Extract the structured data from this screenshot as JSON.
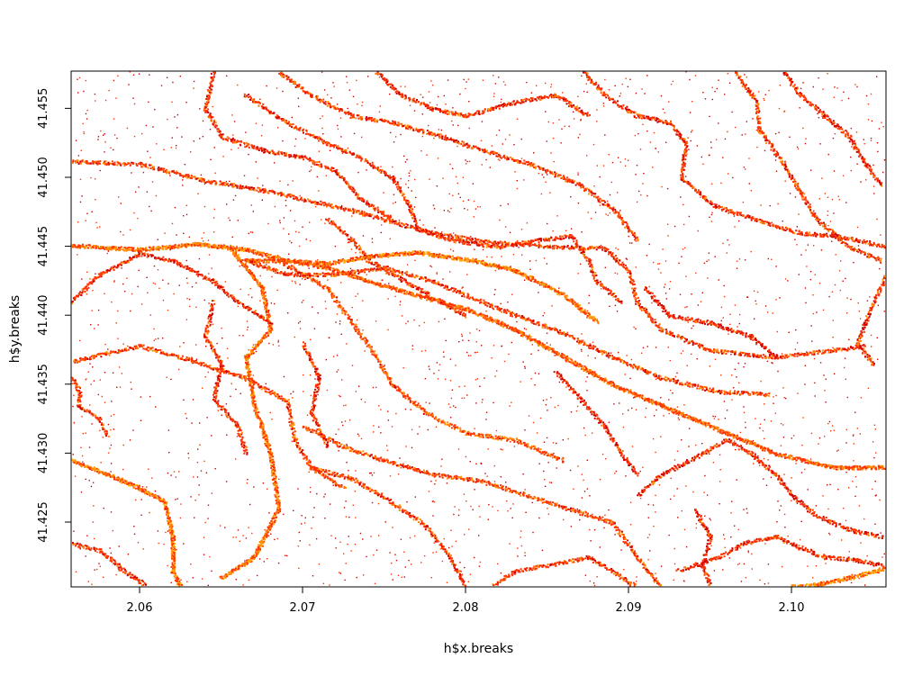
{
  "chart_data": {
    "type": "heatmap",
    "title": "",
    "xlabel": "h$x.breaks",
    "ylabel": "h$y.breaks",
    "xlim": [
      2.0558,
      2.1058
    ],
    "ylim": [
      41.4203,
      41.4577
    ],
    "x_ticks": [
      {
        "value": 2.06,
        "label": "2.06"
      },
      {
        "value": 2.07,
        "label": "2.07"
      },
      {
        "value": 2.08,
        "label": "2.08"
      },
      {
        "value": 2.09,
        "label": "2.09"
      },
      {
        "value": 2.1,
        "label": "2.10"
      }
    ],
    "y_ticks": [
      {
        "value": 41.425,
        "label": "41.425"
      },
      {
        "value": 41.43,
        "label": "41.430"
      },
      {
        "value": 41.435,
        "label": "41.435"
      },
      {
        "value": 41.44,
        "label": "41.440"
      },
      {
        "value": 41.445,
        "label": "41.445"
      },
      {
        "value": 41.45,
        "label": "41.450"
      },
      {
        "value": 41.455,
        "label": "41.455"
      }
    ],
    "colors": {
      "low": "#cc0000",
      "mid": "#ff3300",
      "high": "#ff8800",
      "peak": "#ffaa00"
    },
    "grid": false,
    "legend": "none",
    "tracks": [
      {
        "intensity": 0.9,
        "points": [
          [
            2.0558,
            41.4451
          ],
          [
            2.06,
            41.4448
          ],
          [
            2.0635,
            41.4452
          ],
          [
            2.0665,
            41.4448
          ],
          [
            2.069,
            41.444
          ],
          [
            2.0715,
            41.4438
          ],
          [
            2.074,
            41.4443
          ],
          [
            2.077,
            41.4446
          ],
          [
            2.0805,
            41.444
          ],
          [
            2.083,
            41.4433
          ],
          [
            2.086,
            41.4415
          ],
          [
            2.088,
            41.4396
          ]
        ]
      },
      {
        "intensity": 0.6,
        "points": [
          [
            2.0558,
            41.4367
          ],
          [
            2.06,
            41.4378
          ],
          [
            2.063,
            41.4368
          ],
          [
            2.0665,
            41.4355
          ],
          [
            2.069,
            41.4338
          ],
          [
            2.0695,
            41.431
          ],
          [
            2.0705,
            41.429
          ],
          [
            2.0725,
            41.4275
          ]
        ]
      },
      {
        "intensity": 0.95,
        "points": [
          [
            2.0558,
            41.4295
          ],
          [
            2.058,
            41.4285
          ],
          [
            2.06,
            41.4275
          ],
          [
            2.0615,
            41.4265
          ],
          [
            2.062,
            41.424
          ],
          [
            2.062,
            41.4215
          ],
          [
            2.0625,
            41.4203
          ]
        ]
      },
      {
        "intensity": 0.55,
        "points": [
          [
            2.0558,
            41.4355
          ],
          [
            2.0563,
            41.4345
          ],
          [
            2.0562,
            41.4335
          ],
          [
            2.0575,
            41.4325
          ],
          [
            2.058,
            41.4313
          ]
        ]
      },
      {
        "intensity": 0.85,
        "points": [
          [
            2.0655,
            41.445
          ],
          [
            2.0675,
            41.442
          ],
          [
            2.068,
            41.439
          ],
          [
            2.0665,
            41.437
          ],
          [
            2.067,
            41.4335
          ],
          [
            2.068,
            41.43
          ],
          [
            2.0685,
            41.426
          ],
          [
            2.067,
            41.4225
          ],
          [
            2.065,
            41.421
          ]
        ]
      },
      {
        "intensity": 0.7,
        "points": [
          [
            2.0685,
            41.444
          ],
          [
            2.0715,
            41.442
          ],
          [
            2.073,
            41.4395
          ],
          [
            2.0745,
            41.437
          ],
          [
            2.0755,
            41.435
          ],
          [
            2.0775,
            41.433
          ],
          [
            2.08,
            41.4315
          ],
          [
            2.083,
            41.431
          ],
          [
            2.086,
            41.4295
          ]
        ]
      },
      {
        "intensity": 0.65,
        "points": [
          [
            2.07,
            41.432
          ],
          [
            2.0725,
            41.4305
          ],
          [
            2.075,
            41.4295
          ],
          [
            2.078,
            41.4285
          ],
          [
            2.081,
            41.428
          ],
          [
            2.085,
            41.4265
          ],
          [
            2.089,
            41.425
          ],
          [
            2.0905,
            41.4225
          ],
          [
            2.092,
            41.4203
          ]
        ]
      },
      {
        "intensity": 0.6,
        "points": [
          [
            2.0705,
            41.429
          ],
          [
            2.073,
            41.4282
          ],
          [
            2.075,
            41.4268
          ],
          [
            2.0775,
            41.4248
          ],
          [
            2.079,
            41.4225
          ],
          [
            2.08,
            41.4203
          ]
        ]
      },
      {
        "intensity": 0.55,
        "points": [
          [
            2.0558,
            41.4512
          ],
          [
            2.06,
            41.451
          ],
          [
            2.064,
            41.4498
          ],
          [
            2.068,
            41.449
          ],
          [
            2.071,
            41.4482
          ],
          [
            2.0735,
            41.4475
          ],
          [
            2.0755,
            41.4468
          ],
          [
            2.078,
            41.446
          ],
          [
            2.081,
            41.4454
          ],
          [
            2.0855,
            41.445
          ],
          [
            2.0885,
            41.4449
          ],
          [
            2.09,
            41.4432
          ],
          [
            2.0905,
            41.441
          ],
          [
            2.092,
            41.439
          ],
          [
            2.095,
            41.4375
          ],
          [
            2.099,
            41.437
          ],
          [
            2.1025,
            41.4375
          ],
          [
            2.1045,
            41.4378
          ]
        ]
      },
      {
        "intensity": 0.75,
        "points": [
          [
            2.0665,
            41.444
          ],
          [
            2.069,
            41.444
          ],
          [
            2.0715,
            41.4435
          ],
          [
            2.074,
            41.4425
          ],
          [
            2.077,
            41.4415
          ],
          [
            2.08,
            41.4405
          ],
          [
            2.083,
            41.439
          ],
          [
            2.086,
            41.437
          ],
          [
            2.089,
            41.435
          ],
          [
            2.092,
            41.4335
          ],
          [
            2.096,
            41.4315
          ],
          [
            2.099,
            41.43
          ],
          [
            2.1025,
            41.429
          ],
          [
            2.1058,
            41.429
          ]
        ]
      },
      {
        "intensity": 0.6,
        "points": [
          [
            2.0665,
            41.444
          ],
          [
            2.069,
            41.443
          ],
          [
            2.072,
            41.443
          ],
          [
            2.075,
            41.4435
          ],
          [
            2.078,
            41.4425
          ],
          [
            2.082,
            41.4405
          ],
          [
            2.0855,
            41.439
          ],
          [
            2.089,
            41.437
          ],
          [
            2.092,
            41.4355
          ],
          [
            2.0955,
            41.4345
          ],
          [
            2.0985,
            41.4343
          ]
        ]
      },
      {
        "intensity": 0.55,
        "points": [
          [
            2.0715,
            41.447
          ],
          [
            2.073,
            41.4455
          ],
          [
            2.074,
            41.444
          ],
          [
            2.0755,
            41.443
          ],
          [
            2.077,
            41.442
          ],
          [
            2.0785,
            41.441
          ],
          [
            2.08,
            41.44
          ]
        ]
      },
      {
        "intensity": 0.5,
        "points": [
          [
            2.0665,
            41.456
          ],
          [
            2.069,
            41.454
          ],
          [
            2.0715,
            41.4525
          ],
          [
            2.0735,
            41.4515
          ],
          [
            2.0755,
            41.45
          ],
          [
            2.0765,
            41.448
          ],
          [
            2.077,
            41.4463
          ],
          [
            2.079,
            41.4455
          ],
          [
            2.082,
            41.445
          ],
          [
            2.0845,
            41.4455
          ],
          [
            2.0865,
            41.4458
          ],
          [
            2.0875,
            41.444
          ],
          [
            2.088,
            41.4425
          ],
          [
            2.0895,
            41.441
          ]
        ]
      },
      {
        "intensity": 0.5,
        "points": [
          [
            2.0872,
            41.4577
          ],
          [
            2.0885,
            41.456
          ],
          [
            2.0905,
            41.4545
          ],
          [
            2.0925,
            41.454
          ],
          [
            2.0935,
            41.4525
          ],
          [
            2.0932,
            41.45
          ],
          [
            2.0952,
            41.448
          ],
          [
            2.099,
            41.4465
          ],
          [
            2.1005,
            41.446
          ],
          [
            2.1025,
            41.4458
          ],
          [
            2.104,
            41.4455
          ],
          [
            2.1058,
            41.445
          ]
        ]
      },
      {
        "intensity": 0.55,
        "points": [
          [
            2.0965,
            41.4577
          ],
          [
            2.0978,
            41.4555
          ],
          [
            2.098,
            41.4535
          ],
          [
            2.0995,
            41.451
          ],
          [
            2.1005,
            41.449
          ],
          [
            2.1015,
            41.447
          ],
          [
            2.1035,
            41.445
          ],
          [
            2.1055,
            41.444
          ]
        ]
      },
      {
        "intensity": 0.45,
        "points": [
          [
            2.0995,
            41.4577
          ],
          [
            2.1005,
            41.456
          ],
          [
            2.102,
            41.4545
          ],
          [
            2.1035,
            41.453
          ],
          [
            2.1045,
            41.451
          ],
          [
            2.1055,
            41.4495
          ]
        ]
      },
      {
        "intensity": 0.5,
        "points": [
          [
            2.1058,
            41.443
          ],
          [
            2.105,
            41.441
          ],
          [
            2.1045,
            41.4395
          ],
          [
            2.104,
            41.438
          ],
          [
            2.105,
            41.4365
          ]
        ]
      },
      {
        "intensity": 0.6,
        "points": [
          [
            2.0815,
            41.4203
          ],
          [
            2.083,
            41.4215
          ],
          [
            2.0855,
            41.422
          ],
          [
            2.0875,
            41.4225
          ],
          [
            2.089,
            41.4215
          ],
          [
            2.0905,
            41.4203
          ]
        ]
      },
      {
        "intensity": 1.0,
        "points": [
          [
            2.0995,
            41.4203
          ],
          [
            2.1015,
            41.4205
          ],
          [
            2.1035,
            41.421
          ],
          [
            2.1058,
            41.4217
          ]
        ]
      },
      {
        "intensity": 0.5,
        "points": [
          [
            2.0905,
            41.427
          ],
          [
            2.092,
            41.4285
          ],
          [
            2.0945,
            41.43
          ],
          [
            2.096,
            41.431
          ],
          [
            2.0975,
            41.43
          ],
          [
            2.099,
            41.4285
          ],
          [
            2.1,
            41.427
          ],
          [
            2.1015,
            41.4255
          ],
          [
            2.1035,
            41.4245
          ],
          [
            2.1055,
            41.424
          ]
        ]
      },
      {
        "intensity": 0.45,
        "points": [
          [
            2.093,
            41.4215
          ],
          [
            2.0955,
            41.4225
          ],
          [
            2.097,
            41.4235
          ],
          [
            2.099,
            41.424
          ],
          [
            2.1005,
            41.4232
          ],
          [
            2.102,
            41.4225
          ],
          [
            2.104,
            41.4223
          ],
          [
            2.1058,
            41.4218
          ]
        ]
      },
      {
        "intensity": 0.55,
        "points": [
          [
            2.0685,
            41.4577
          ],
          [
            2.0705,
            41.456
          ],
          [
            2.073,
            41.4545
          ],
          [
            2.0755,
            41.454
          ],
          [
            2.0785,
            41.453
          ],
          [
            2.081,
            41.452
          ],
          [
            2.084,
            41.451
          ],
          [
            2.087,
            41.4495
          ],
          [
            2.0892,
            41.4475
          ],
          [
            2.0905,
            41.4455
          ]
        ]
      },
      {
        "intensity": 0.5,
        "points": [
          [
            2.0745,
            41.4577
          ],
          [
            2.076,
            41.456
          ],
          [
            2.078,
            41.455
          ],
          [
            2.08,
            41.4545
          ],
          [
            2.083,
            41.4555
          ],
          [
            2.0855,
            41.456
          ],
          [
            2.0875,
            41.4545
          ]
        ]
      },
      {
        "intensity": 0.5,
        "points": [
          [
            2.0645,
            41.4577
          ],
          [
            2.064,
            41.455
          ],
          [
            2.065,
            41.453
          ],
          [
            2.0675,
            41.452
          ],
          [
            2.07,
            41.4515
          ],
          [
            2.072,
            41.4505
          ],
          [
            2.0735,
            41.4485
          ],
          [
            2.0755,
            41.447
          ]
        ]
      },
      {
        "intensity": 0.45,
        "points": [
          [
            2.0558,
            41.441
          ],
          [
            2.0575,
            41.443
          ],
          [
            2.06,
            41.4445
          ],
          [
            2.062,
            41.444
          ],
          [
            2.0645,
            41.4425
          ],
          [
            2.066,
            41.441
          ],
          [
            2.068,
            41.4395
          ]
        ]
      },
      {
        "intensity": 0.45,
        "points": [
          [
            2.0645,
            41.441
          ],
          [
            2.064,
            41.4385
          ],
          [
            2.065,
            41.4365
          ],
          [
            2.0645,
            41.434
          ],
          [
            2.066,
            41.432
          ],
          [
            2.0665,
            41.43
          ]
        ]
      },
      {
        "intensity": 0.45,
        "points": [
          [
            2.0558,
            41.4235
          ],
          [
            2.0575,
            41.423
          ],
          [
            2.059,
            41.4215
          ],
          [
            2.0605,
            41.4203
          ]
        ]
      },
      {
        "intensity": 0.45,
        "points": [
          [
            2.07,
            41.438
          ],
          [
            2.071,
            41.4355
          ],
          [
            2.0705,
            41.433
          ],
          [
            2.0715,
            41.4305
          ]
        ]
      },
      {
        "intensity": 0.4,
        "points": [
          [
            2.0855,
            41.436
          ],
          [
            2.087,
            41.434
          ],
          [
            2.0885,
            41.432
          ],
          [
            2.0895,
            41.43
          ],
          [
            2.0905,
            41.4285
          ]
        ]
      },
      {
        "intensity": 0.4,
        "points": [
          [
            2.091,
            41.442
          ],
          [
            2.0925,
            41.44
          ],
          [
            2.095,
            41.4395
          ],
          [
            2.0975,
            41.4385
          ],
          [
            2.099,
            41.437
          ]
        ]
      },
      {
        "intensity": 0.4,
        "points": [
          [
            2.094,
            41.426
          ],
          [
            2.095,
            41.424
          ],
          [
            2.0945,
            41.422
          ],
          [
            2.095,
            41.4203
          ]
        ]
      }
    ]
  }
}
